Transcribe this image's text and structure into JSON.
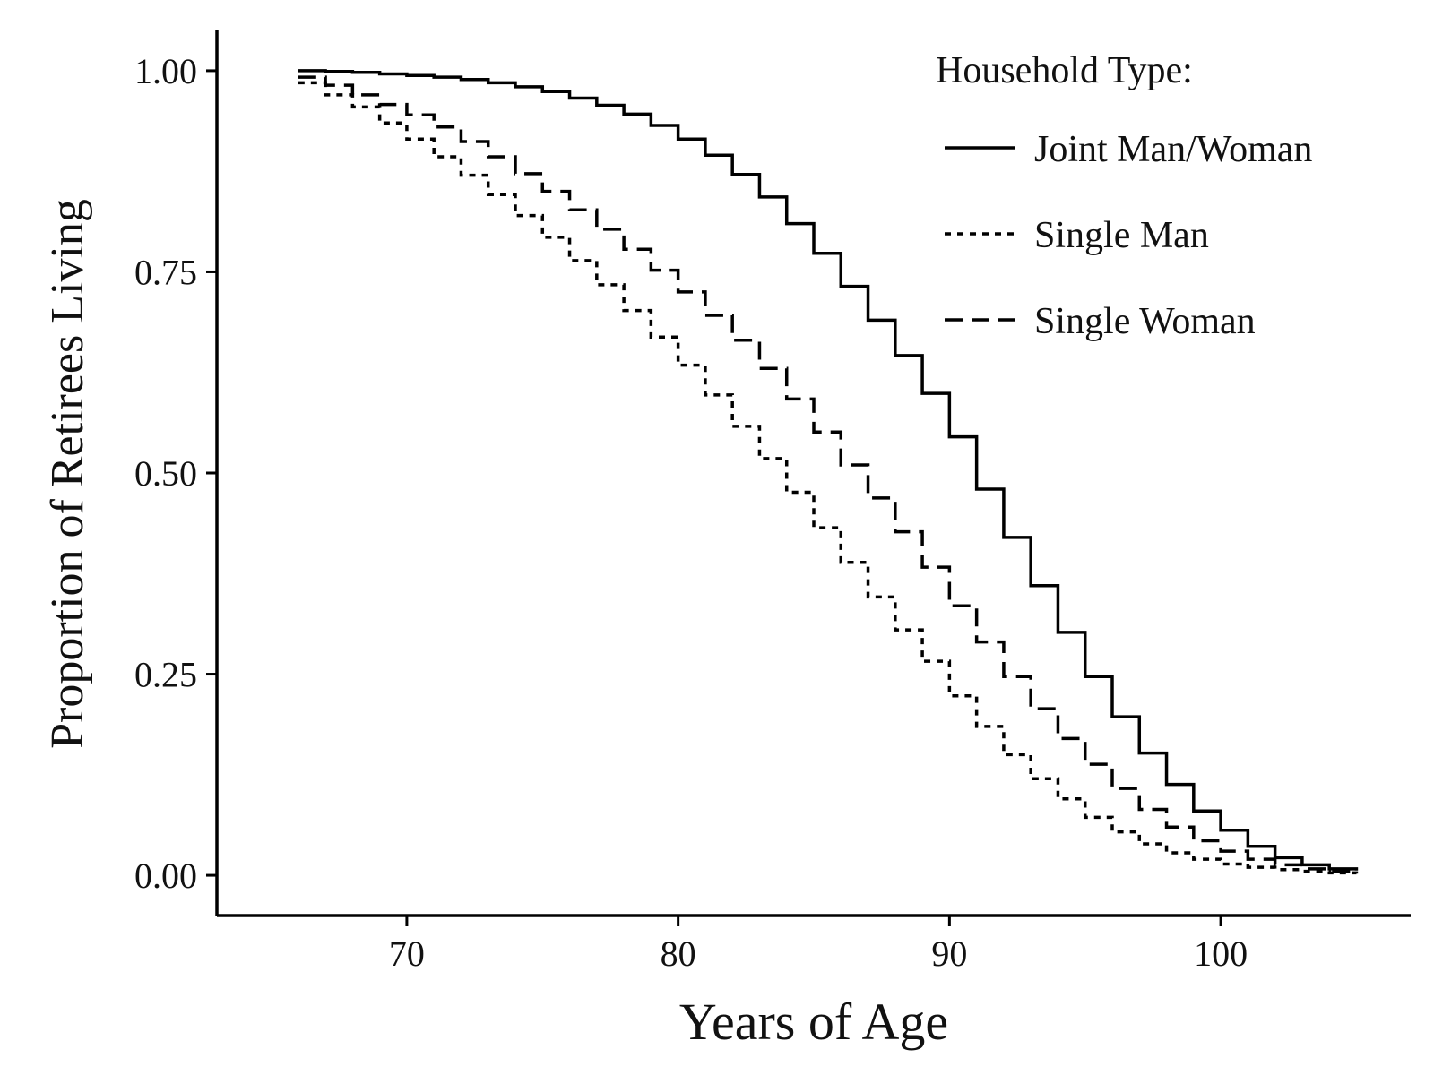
{
  "chart_data": {
    "type": "line",
    "step": true,
    "xlabel": "Years of Age",
    "ylabel": "Proportion of Retirees Living",
    "xlim": [
      63,
      107
    ],
    "ylim": [
      -0.05,
      1.05
    ],
    "x_ticks": [
      70,
      80,
      90,
      100
    ],
    "x_tick_labels": [
      "70",
      "80",
      "90",
      "100"
    ],
    "y_ticks": [
      0,
      0.25,
      0.5,
      0.75,
      1.0
    ],
    "y_tick_labels": [
      "0.00",
      "0.25",
      "0.50",
      "0.75",
      "1.00"
    ],
    "grid": false,
    "legend": {
      "title": "Household Type:",
      "position": "top-right"
    },
    "x": [
      66,
      67,
      68,
      69,
      70,
      71,
      72,
      73,
      74,
      75,
      76,
      77,
      78,
      79,
      80,
      81,
      82,
      83,
      84,
      85,
      86,
      87,
      88,
      89,
      90,
      91,
      92,
      93,
      94,
      95,
      96,
      97,
      98,
      99,
      100,
      101,
      102,
      103,
      104,
      105
    ],
    "series": [
      {
        "name": "Joint Man/Woman",
        "dash": "solid",
        "color": "#000000",
        "values": [
          1.0,
          0.999,
          0.998,
          0.996,
          0.994,
          0.992,
          0.989,
          0.985,
          0.98,
          0.974,
          0.966,
          0.957,
          0.946,
          0.932,
          0.915,
          0.895,
          0.871,
          0.843,
          0.81,
          0.773,
          0.732,
          0.69,
          0.646,
          0.599,
          0.545,
          0.48,
          0.42,
          0.36,
          0.302,
          0.247,
          0.197,
          0.152,
          0.113,
          0.08,
          0.056,
          0.036,
          0.022,
          0.013,
          0.008,
          0.006
        ]
      },
      {
        "name": "Single Man",
        "dash": "dotted",
        "color": "#000000",
        "values": [
          0.985,
          0.97,
          0.955,
          0.935,
          0.915,
          0.893,
          0.87,
          0.846,
          0.82,
          0.793,
          0.764,
          0.734,
          0.702,
          0.669,
          0.634,
          0.597,
          0.558,
          0.518,
          0.476,
          0.432,
          0.389,
          0.346,
          0.305,
          0.266,
          0.223,
          0.185,
          0.15,
          0.12,
          0.095,
          0.072,
          0.054,
          0.039,
          0.028,
          0.02,
          0.014,
          0.01,
          0.007,
          0.005,
          0.003,
          0.002
        ]
      },
      {
        "name": "Single Woman",
        "dash": "dashed",
        "color": "#000000",
        "values": [
          0.992,
          0.982,
          0.97,
          0.958,
          0.945,
          0.93,
          0.912,
          0.893,
          0.872,
          0.85,
          0.827,
          0.803,
          0.778,
          0.752,
          0.725,
          0.696,
          0.665,
          0.63,
          0.592,
          0.551,
          0.51,
          0.469,
          0.427,
          0.383,
          0.335,
          0.29,
          0.247,
          0.207,
          0.17,
          0.138,
          0.108,
          0.082,
          0.06,
          0.043,
          0.03,
          0.02,
          0.013,
          0.008,
          0.005,
          0.003
        ]
      }
    ]
  }
}
